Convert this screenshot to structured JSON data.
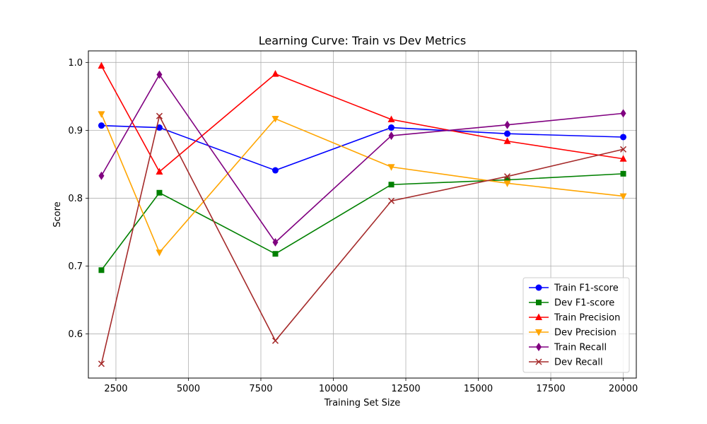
{
  "chart_data": {
    "type": "line",
    "title": "Learning Curve: Train vs Dev Metrics",
    "xlabel": "Training Set Size",
    "ylabel": "Score",
    "x": [
      2000,
      4000,
      8000,
      12000,
      16000,
      20000
    ],
    "xlim": [
      1550,
      20450
    ],
    "ylim": [
      0.535,
      1.017
    ],
    "xticks": [
      2500,
      5000,
      7500,
      10000,
      12500,
      15000,
      17500,
      20000
    ],
    "yticks": [
      0.6,
      0.7,
      0.8,
      0.9,
      1.0
    ],
    "grid": true,
    "legend_position": "lower-right",
    "series": [
      {
        "name": "Train F1-score",
        "color": "#0000ff",
        "marker": "circle",
        "values": [
          0.907,
          0.904,
          0.841,
          0.904,
          0.895,
          0.89
        ]
      },
      {
        "name": "Dev F1-score",
        "color": "#008000",
        "marker": "square",
        "values": [
          0.694,
          0.808,
          0.718,
          0.82,
          0.827,
          0.836
        ]
      },
      {
        "name": "Train Precision",
        "color": "#ff0000",
        "marker": "triangle-up",
        "values": [
          0.995,
          0.839,
          0.983,
          0.916,
          0.884,
          0.858
        ]
      },
      {
        "name": "Dev Precision",
        "color": "#ffa500",
        "marker": "triangle-down",
        "values": [
          0.924,
          0.72,
          0.917,
          0.846,
          0.822,
          0.803
        ]
      },
      {
        "name": "Train Recall",
        "color": "#800080",
        "marker": "diamond",
        "values": [
          0.833,
          0.982,
          0.735,
          0.892,
          0.908,
          0.925
        ]
      },
      {
        "name": "Dev Recall",
        "color": "#a52a2a",
        "marker": "x",
        "values": [
          0.556,
          0.921,
          0.59,
          0.796,
          0.832,
          0.872
        ]
      }
    ]
  }
}
